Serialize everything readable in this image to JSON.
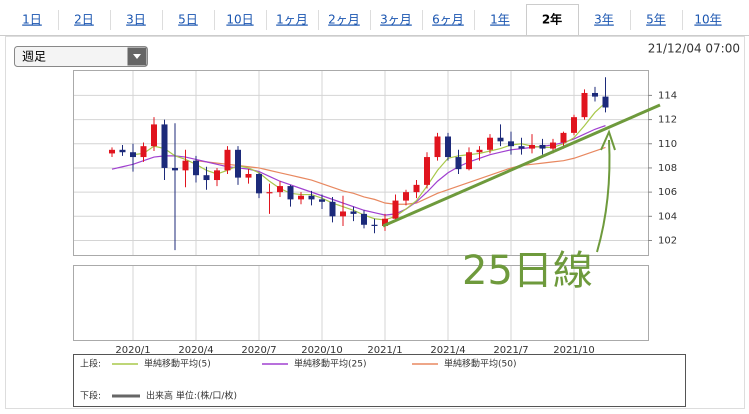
{
  "tabs": [
    "1日",
    "2日",
    "3日",
    "5日",
    "10日",
    "1ヶ月",
    "2ヶ月",
    "3ヶ月",
    "6ヶ月",
    "1年",
    "2年",
    "3年",
    "5年",
    "10年"
  ],
  "active_tab": 10,
  "dropdown": "週足",
  "timestamp": "21/12/04 07:00",
  "legend": {
    "upper_label": "上段:",
    "lower_label": "下段:",
    "volume_label": "出来高 単位:(株/口/枚)",
    "volume_color": "#666666"
  },
  "chart_data": {
    "type": "candlestick",
    "annotation": "25日線",
    "categories": [
      null,
      null,
      "2020/1",
      null,
      null,
      null,
      null,
      null,
      "2020/4",
      null,
      null,
      null,
      null,
      null,
      "2020/7",
      null,
      null,
      null,
      null,
      null,
      "2020/10",
      null,
      null,
      null,
      null,
      null,
      "2021/1",
      null,
      null,
      null,
      null,
      null,
      "2021/4",
      null,
      null,
      null,
      null,
      null,
      "2021/7",
      null,
      null,
      null,
      null,
      null,
      "2021/10",
      null,
      null,
      null
    ],
    "open": [
      109.2,
      109.5,
      109.3,
      108.9,
      109.8,
      111.6,
      108.0,
      107.8,
      108.6,
      107.4,
      107.0,
      107.8,
      109.5,
      107.2,
      107.5,
      105.9,
      106.0,
      106.5,
      105.4,
      105.7,
      105.4,
      105.2,
      104.0,
      104.4,
      104.2,
      103.3,
      103.2,
      103.8,
      105.3,
      106.0,
      106.6,
      108.9,
      110.6,
      108.9,
      107.9,
      109.3,
      109.5,
      110.5,
      110.2,
      109.8,
      109.6,
      109.9,
      109.6,
      110.1,
      110.9,
      112.2,
      114.2,
      113.9
    ],
    "high": [
      109.7,
      109.9,
      110.0,
      110.1,
      112.2,
      112.0,
      111.7,
      109.5,
      109.0,
      108.1,
      108.0,
      109.8,
      109.8,
      107.9,
      107.6,
      106.7,
      106.9,
      106.6,
      106.0,
      106.1,
      105.8,
      105.6,
      105.7,
      104.8,
      104.5,
      103.8,
      104.2,
      105.8,
      106.2,
      107.0,
      109.3,
      110.9,
      110.9,
      109.5,
      109.7,
      109.8,
      110.8,
      111.6,
      111.0,
      110.5,
      110.8,
      110.4,
      110.4,
      111.0,
      112.4,
      114.5,
      114.7,
      115.5
    ],
    "low": [
      108.9,
      109.0,
      107.7,
      108.5,
      109.4,
      107.0,
      101.2,
      106.4,
      106.8,
      106.2,
      106.5,
      107.5,
      106.6,
      106.7,
      105.5,
      104.2,
      105.6,
      104.8,
      105.0,
      104.9,
      104.6,
      103.5,
      103.2,
      103.6,
      103.0,
      102.6,
      102.8,
      103.6,
      104.9,
      105.5,
      106.3,
      108.6,
      108.6,
      107.5,
      107.8,
      108.6,
      109.2,
      109.8,
      109.1,
      109.1,
      109.2,
      109.1,
      109.2,
      109.6,
      110.7,
      112.0,
      113.5,
      112.6
    ],
    "close": [
      109.5,
      109.3,
      108.9,
      109.8,
      111.6,
      108.0,
      107.8,
      108.6,
      107.4,
      107.0,
      107.8,
      109.5,
      107.2,
      107.5,
      105.9,
      106.0,
      106.5,
      105.4,
      105.7,
      105.4,
      105.2,
      104.0,
      104.4,
      104.2,
      103.3,
      103.2,
      103.8,
      105.3,
      106.0,
      106.6,
      108.9,
      110.6,
      108.9,
      107.9,
      109.3,
      109.5,
      110.5,
      110.2,
      109.8,
      109.6,
      109.9,
      109.6,
      110.1,
      110.9,
      112.2,
      114.2,
      113.9,
      113.0
    ],
    "up_color": "#e0141e",
    "down_color": "#1c2a7a",
    "series": [
      {
        "name": "単純移動平均(5)",
        "color": "#a8c84a",
        "values": [
          null,
          null,
          109.1,
          109.2,
          109.8,
          109.6,
          109.0,
          108.7,
          108.3,
          107.8,
          107.5,
          107.8,
          108.2,
          108.0,
          107.6,
          106.9,
          106.3,
          105.9,
          105.8,
          105.8,
          105.5,
          105.1,
          104.8,
          104.5,
          104.1,
          103.8,
          103.7,
          104.0,
          104.6,
          105.3,
          106.5,
          107.8,
          108.8,
          109.0,
          109.1,
          109.2,
          109.4,
          109.6,
          109.9,
          110.0,
          109.8,
          109.7,
          109.7,
          110.0,
          110.5,
          111.5,
          112.6,
          113.4
        ]
      },
      {
        "name": "単純移動平均(25)",
        "color": "#a040d0",
        "values": [
          107.9,
          108.1,
          108.3,
          108.6,
          108.9,
          109.0,
          109.0,
          108.9,
          108.7,
          108.5,
          108.3,
          108.1,
          108.0,
          107.9,
          107.7,
          107.3,
          106.9,
          106.6,
          106.3,
          106.0,
          105.7,
          105.4,
          105.1,
          104.8,
          104.5,
          104.3,
          104.1,
          104.2,
          104.6,
          105.2,
          106.0,
          106.9,
          107.6,
          108.1,
          108.5,
          108.8,
          109.1,
          109.3,
          109.5,
          109.6,
          109.7,
          109.8,
          109.9,
          110.1,
          110.4,
          110.8,
          111.2,
          111.5
        ]
      },
      {
        "name": "単純移動平均(50)",
        "color": "#e88860",
        "values": [
          null,
          null,
          null,
          null,
          null,
          null,
          null,
          null,
          108.6,
          108.5,
          108.4,
          108.3,
          108.2,
          108.1,
          108.0,
          107.8,
          107.6,
          107.4,
          107.2,
          107.0,
          106.7,
          106.4,
          106.1,
          105.9,
          105.6,
          105.4,
          105.1,
          105.0,
          105.0,
          105.1,
          105.5,
          105.9,
          106.2,
          106.5,
          106.8,
          107.1,
          107.4,
          107.7,
          108.0,
          108.2,
          108.3,
          108.4,
          108.5,
          108.6,
          108.8,
          109.1,
          109.4,
          109.7
        ]
      }
    ],
    "ylim": [
      100.8,
      116.1
    ],
    "yticks": [
      102,
      104,
      106,
      108,
      110,
      112,
      114
    ],
    "grid": true
  }
}
